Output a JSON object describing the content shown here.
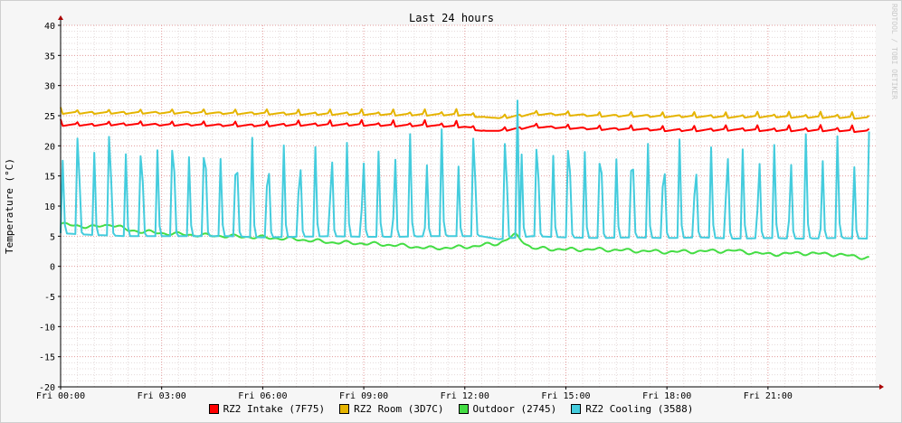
{
  "chart_data": {
    "type": "line",
    "title": "Last 24 hours",
    "ylabel": "Temperature (°C)",
    "watermark": "RRDTOOL / TOBI OETIKER",
    "ylim": [
      -20,
      40
    ],
    "yticks": [
      40,
      35,
      30,
      25,
      20,
      15,
      10,
      5,
      0,
      -5,
      -10,
      -15,
      -20
    ],
    "xlim_hours": [
      0,
      24.2
    ],
    "xtick_labels": [
      "Fri 00:00",
      "Fri 03:00",
      "Fri 06:00",
      "Fri 09:00",
      "Fri 12:00",
      "Fri 15:00",
      "Fri 18:00",
      "Fri 21:00"
    ],
    "series": [
      {
        "name": "RZ2 Intake (7F75)",
        "color": "#ff0000",
        "x": [
          0,
          1,
          2,
          3,
          4,
          5,
          6,
          7,
          8,
          9,
          10,
          11,
          12,
          12.5,
          13,
          14,
          15,
          16,
          17,
          18,
          19,
          20,
          21,
          22,
          23,
          24
        ],
        "y": [
          23.5,
          23.5,
          23.6,
          23.5,
          23.5,
          23.4,
          23.4,
          23.5,
          23.5,
          23.5,
          23.4,
          23.4,
          23.2,
          22.5,
          22.5,
          23.2,
          23.0,
          22.8,
          22.8,
          22.6,
          22.6,
          22.7,
          22.6,
          22.6,
          22.6,
          22.4
        ]
      },
      {
        "name": "RZ2 Room (3D7C)",
        "color": "#e5b400",
        "x": [
          0,
          1,
          2,
          3,
          4,
          5,
          6,
          7,
          8,
          9,
          10,
          11,
          12,
          12.5,
          13,
          14,
          15,
          16,
          17,
          18,
          19,
          20,
          21,
          22,
          23,
          24
        ],
        "y": [
          25.5,
          25.5,
          25.5,
          25.5,
          25.5,
          25.4,
          25.4,
          25.3,
          25.3,
          25.3,
          25.2,
          25.2,
          25.2,
          24.8,
          24.6,
          25.3,
          25.2,
          25.0,
          25.0,
          24.9,
          24.9,
          24.8,
          24.9,
          24.8,
          24.8,
          24.6
        ]
      },
      {
        "name": "Outdoor (2745)",
        "color": "#44dd44",
        "x": [
          0,
          1,
          1.5,
          2,
          3,
          4,
          5,
          6,
          7,
          8,
          9,
          10,
          11,
          12,
          13,
          13.5,
          14,
          15,
          16,
          17,
          18,
          19,
          20,
          21,
          22,
          23,
          24
        ],
        "y": [
          7.0,
          6.5,
          7.0,
          6.0,
          5.5,
          5.2,
          5.0,
          4.8,
          4.5,
          4.0,
          3.8,
          3.5,
          3.0,
          3.2,
          3.8,
          5.2,
          3.0,
          2.8,
          2.8,
          2.6,
          2.4,
          2.5,
          2.6,
          2.0,
          2.2,
          2.0,
          1.4
        ]
      },
      {
        "name": "RZ2 Cooling (3588)",
        "color": "#44ccdd",
        "x": [
          0,
          1,
          2,
          3,
          4,
          5,
          6,
          7,
          8,
          9,
          10,
          11,
          12,
          12.5,
          13,
          14,
          15,
          16,
          17,
          18,
          19,
          20,
          21,
          22,
          23,
          24
        ],
        "y": [
          5.5,
          5.2,
          5.0,
          5.0,
          5.0,
          5.0,
          4.8,
          4.9,
          5.0,
          4.9,
          4.9,
          5.0,
          5.0,
          5.0,
          4.5,
          5.0,
          4.8,
          4.7,
          4.8,
          4.7,
          4.8,
          4.6,
          4.7,
          4.6,
          4.7,
          4.6
        ],
        "spike_peaks_approx": [
          20,
          27.5
        ]
      }
    ]
  }
}
